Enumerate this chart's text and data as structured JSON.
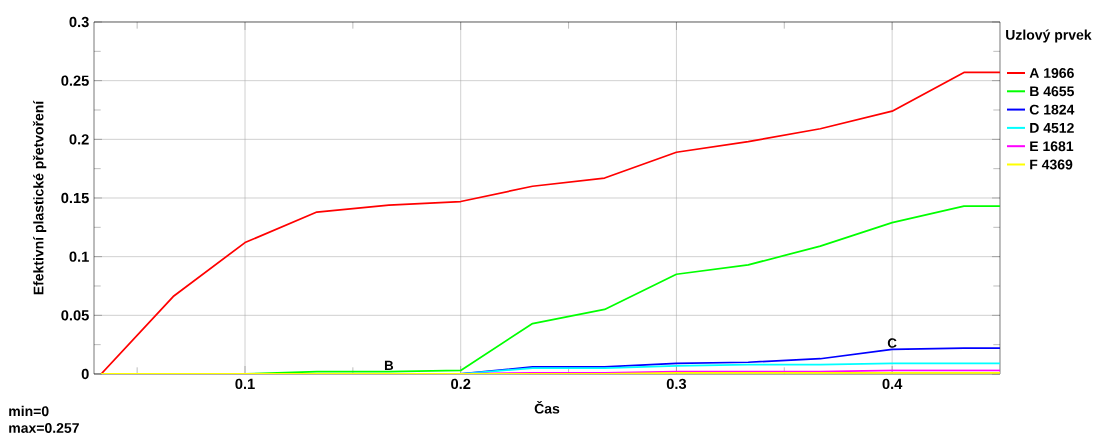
{
  "chart_data": {
    "type": "line",
    "xlabel": "Čas",
    "ylabel": "Efektivní plastické přetvoření",
    "legend_title": "Uzlový prvek",
    "legend": "right",
    "grid": true,
    "x": [
      0.0333,
      0.0667,
      0.1,
      0.1333,
      0.1667,
      0.2,
      0.2333,
      0.2667,
      0.3,
      0.3333,
      0.3667,
      0.4,
      0.4333,
      0.45
    ],
    "xlim": [
      0.03,
      0.45
    ],
    "ylim": [
      0,
      0.3
    ],
    "xticks": [
      {
        "value": 0.05,
        "label": null
      },
      0.1,
      {
        "value": 0.15,
        "label": null
      },
      0.2,
      {
        "value": 0.25,
        "label": null
      },
      0.3,
      {
        "value": 0.35,
        "label": null
      },
      0.4
    ],
    "yticks": [
      0,
      {
        "value": 0.025,
        "label": null
      },
      0.05,
      {
        "value": 0.075,
        "label": null
      },
      0.1,
      {
        "value": 0.125,
        "label": null
      },
      0.15,
      {
        "value": 0.175,
        "label": null
      },
      0.2,
      {
        "value": 0.225,
        "label": null
      },
      0.25,
      {
        "value": 0.275,
        "label": null
      },
      0.3
    ],
    "series": [
      {
        "name": "A 1966",
        "color": "#ff0000",
        "values": [
          0,
          0.066,
          0.112,
          0.138,
          0.144,
          0.147,
          0.16,
          0.167,
          0.189,
          0.198,
          0.209,
          0.224,
          0.257,
          0.257
        ]
      },
      {
        "name": "B 4655",
        "color": "#00ff00",
        "values": [
          0,
          0,
          0,
          0.002,
          0.002,
          0.003,
          0.043,
          0.055,
          0.085,
          0.093,
          0.109,
          0.129,
          0.143,
          0.143
        ]
      },
      {
        "name": "C 1824",
        "color": "#0000ff",
        "values": [
          null,
          null,
          null,
          null,
          null,
          0,
          0.006,
          0.006,
          0.009,
          0.01,
          0.013,
          0.021,
          0.022,
          0.022
        ]
      },
      {
        "name": "D 4512",
        "color": "#00ffff",
        "values": [
          null,
          null,
          null,
          null,
          null,
          0,
          0.005,
          0.005,
          0.007,
          0.008,
          0.008,
          0.009,
          0.009,
          0.009
        ]
      },
      {
        "name": "E 1681",
        "color": "#ff00ff",
        "values": [
          null,
          null,
          null,
          null,
          null,
          0,
          0.001,
          0.001,
          0.002,
          0.002,
          0.002,
          0.003,
          0.003,
          0.003
        ]
      },
      {
        "name": "F 4369",
        "color": "#ffff00",
        "values": [
          0,
          0,
          0,
          0,
          0,
          0,
          0,
          0,
          0.001,
          0.001,
          0.001,
          0.001,
          0.001,
          0.001
        ]
      }
    ],
    "annotations": [
      {
        "text": "B",
        "x": 0.1667,
        "y": 0.002
      },
      {
        "text": "C",
        "x": 0.4,
        "y": 0.021
      },
      "min=0",
      "max=0.257"
    ]
  }
}
